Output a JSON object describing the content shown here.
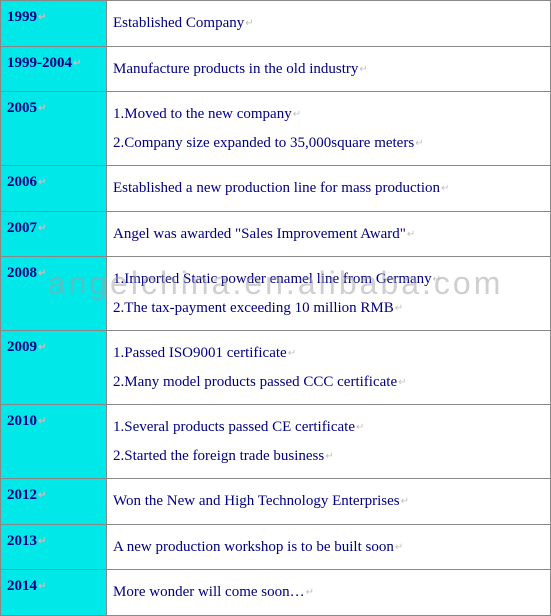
{
  "table": {
    "year_bg_color": "#00e8e8",
    "desc_bg_color": "#ffffff",
    "text_color": "#000080",
    "border_color": "#888888",
    "rows": [
      {
        "year": "1999",
        "desc": "Established Company"
      },
      {
        "year": "1999-2004",
        "desc": "Manufacture products in the old industry"
      },
      {
        "year": "2005",
        "desc": "1.Moved to the new company\n2.Company size expanded to 35,000square meters"
      },
      {
        "year": "2006",
        "desc": "Established a new production line for mass production"
      },
      {
        "year": "2007",
        "desc": "Angel was awarded \"Sales Improvement Award\""
      },
      {
        "year": "2008",
        "desc": "1.Imported Static powder enamel line from Germany\n2.The tax-payment exceeding 10 million RMB"
      },
      {
        "year": "2009",
        "desc": "1.Passed ISO9001 certificate\n2.Many model products passed CCC certificate"
      },
      {
        "year": "2010",
        "desc": "1.Several products passed CE certificate\n2.Started the foreign trade business"
      },
      {
        "year": "2012",
        "desc": "Won the New and High Technology Enterprises"
      },
      {
        "year": "2013",
        "desc": "A new production workshop is to be built soon"
      },
      {
        "year": "2014",
        "desc": "More wonder will come soon…"
      }
    ]
  },
  "watermark": {
    "text": "angelchina.en.alibaba.com",
    "color": "rgba(160,160,160,0.5)",
    "fontsize": 32
  }
}
